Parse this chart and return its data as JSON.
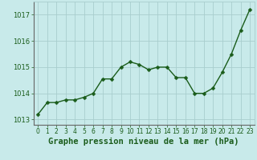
{
  "x": [
    0,
    1,
    2,
    3,
    4,
    5,
    6,
    7,
    8,
    9,
    10,
    11,
    12,
    13,
    14,
    15,
    16,
    17,
    18,
    19,
    20,
    21,
    22,
    23
  ],
  "y": [
    1013.2,
    1013.65,
    1013.65,
    1013.75,
    1013.75,
    1013.85,
    1014.0,
    1014.55,
    1014.55,
    1015.0,
    1015.2,
    1015.1,
    1014.9,
    1015.0,
    1015.0,
    1014.6,
    1014.6,
    1014.0,
    1014.0,
    1014.2,
    1014.8,
    1015.5,
    1016.4,
    1017.2
  ],
  "xlabel": "Graphe pression niveau de la mer (hPa)",
  "ylim": [
    1012.8,
    1017.5
  ],
  "yticks": [
    1013,
    1014,
    1015,
    1016,
    1017
  ],
  "xticks": [
    0,
    1,
    2,
    3,
    4,
    5,
    6,
    7,
    8,
    9,
    10,
    11,
    12,
    13,
    14,
    15,
    16,
    17,
    18,
    19,
    20,
    21,
    22,
    23
  ],
  "line_color": "#1a5c1a",
  "marker_color": "#1a5c1a",
  "bg_color": "#c8eaea",
  "grid_color": "#a8cece",
  "text_color": "#1a5c1a",
  "spine_color": "#666666",
  "marker_size": 2.5,
  "line_width": 1.0,
  "xlabel_fontsize": 7.5,
  "ytick_fontsize": 6.0,
  "xtick_fontsize": 5.5
}
